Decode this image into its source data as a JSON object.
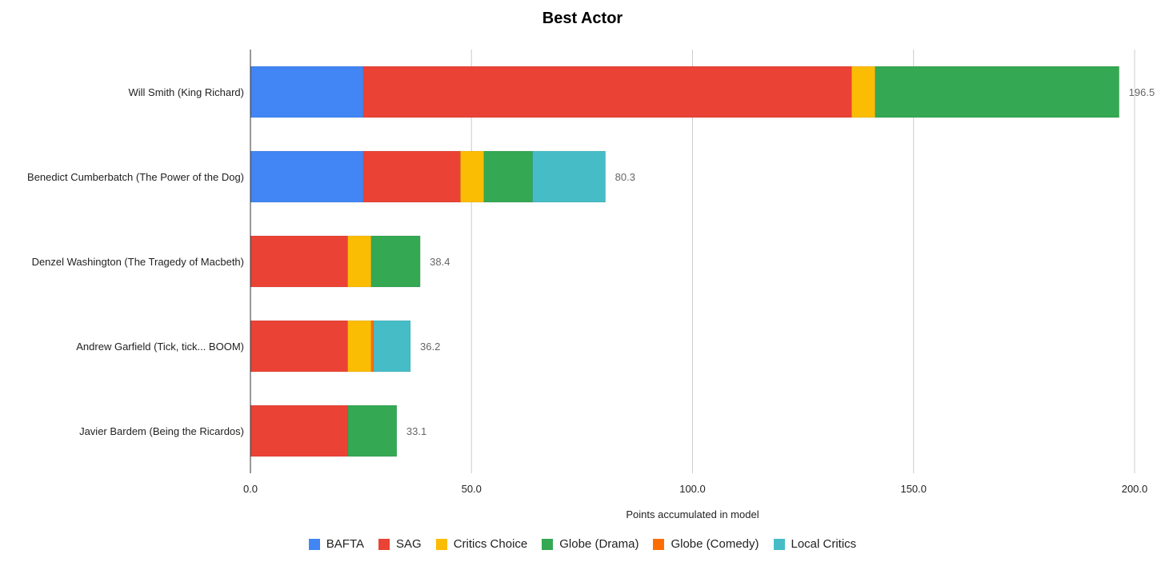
{
  "chart_data": {
    "type": "bar",
    "orientation": "horizontal",
    "stacked": true,
    "title": "Best Actor",
    "xlabel": "Points accumulated in model",
    "ylabel": "",
    "xlim": [
      0,
      200
    ],
    "x_ticks": [
      "0.0",
      "50.0",
      "100.0",
      "150.0",
      "200.0"
    ],
    "grid": true,
    "legend_position": "bottom",
    "categories": [
      "Will Smith (King Richard)",
      "Benedict Cumberbatch (The Power of the Dog)",
      "Denzel Washington (The Tragedy of Macbeth)",
      "Andrew Garfield (Tick, tick... BOOM)",
      "Javier Bardem (Being the Ricardos)"
    ],
    "series": [
      {
        "name": "BAFTA",
        "color": "#4285f4",
        "values": [
          25.5,
          25.5,
          0,
          0,
          0
        ]
      },
      {
        "name": "SAG",
        "color": "#ea4335",
        "values": [
          110.5,
          22.0,
          22.0,
          22.0,
          22.0
        ]
      },
      {
        "name": "Critics Choice",
        "color": "#fbbc04",
        "values": [
          5.3,
          5.3,
          5.3,
          5.3,
          0
        ]
      },
      {
        "name": "Globe (Drama)",
        "color": "#34a853",
        "values": [
          55.2,
          11.0,
          11.1,
          0,
          11.1
        ]
      },
      {
        "name": "Globe (Comedy)",
        "color": "#ff6d01",
        "values": [
          0,
          0,
          0,
          0.6,
          0
        ]
      },
      {
        "name": "Local Critics",
        "color": "#46bdc6",
        "values": [
          0,
          16.5,
          0,
          8.3,
          0
        ]
      }
    ],
    "totals": [
      "196.5",
      "80.3",
      "38.4",
      "36.2",
      "33.1"
    ]
  }
}
